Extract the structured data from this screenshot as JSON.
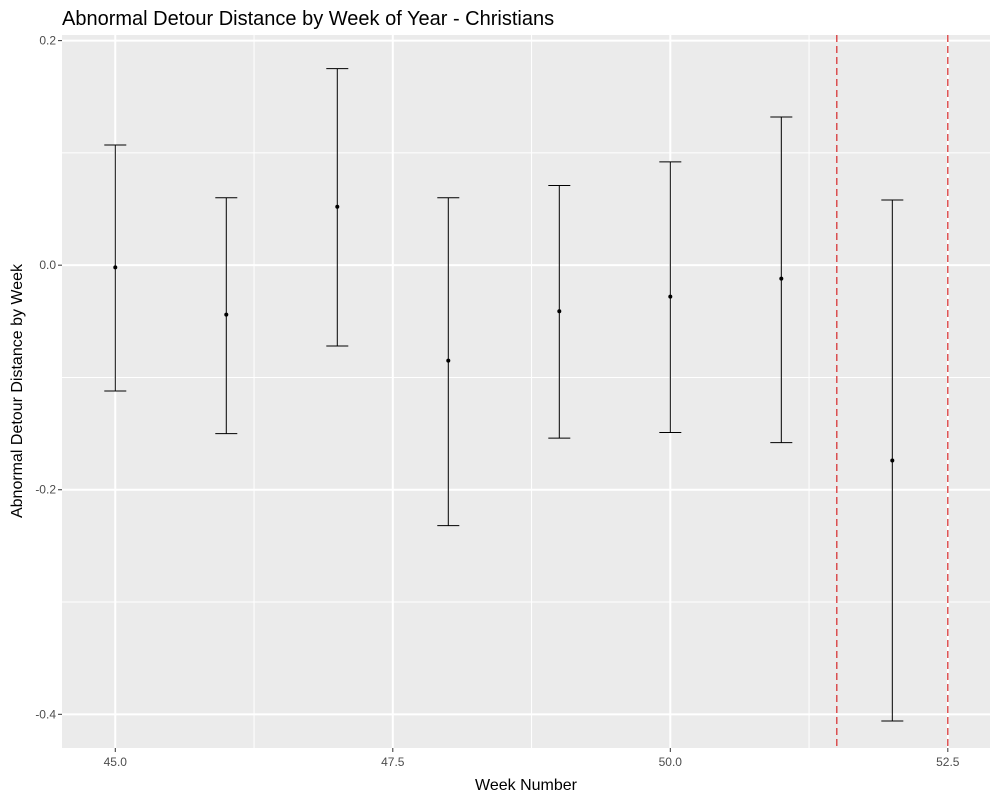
{
  "chart_data": {
    "type": "scatter",
    "title": "Abnormal Detour Distance by Week of Year - Christians",
    "xlabel": "Week Number",
    "ylabel": "Abnormal Detour Distance by Week",
    "xlim": [
      44.52,
      52.88
    ],
    "ylim": [
      -0.43,
      0.205
    ],
    "x_ticks": [
      45.0,
      47.5,
      50.0,
      52.5
    ],
    "x_tick_labels": [
      "45.0",
      "47.5",
      "50.0",
      "52.5"
    ],
    "y_ticks": [
      0.2,
      0.0,
      -0.2,
      -0.4
    ],
    "y_tick_labels": [
      "0.2",
      "0.0",
      "-0.2",
      "-0.4"
    ],
    "grid": true,
    "points": [
      {
        "x": 45,
        "y": -0.002,
        "ymin": -0.112,
        "ymax": 0.107
      },
      {
        "x": 46,
        "y": -0.044,
        "ymin": -0.15,
        "ymax": 0.06
      },
      {
        "x": 47,
        "y": 0.052,
        "ymin": -0.072,
        "ymax": 0.175
      },
      {
        "x": 48,
        "y": -0.085,
        "ymin": -0.232,
        "ymax": 0.06
      },
      {
        "x": 49,
        "y": -0.041,
        "ymin": -0.154,
        "ymax": 0.071
      },
      {
        "x": 50,
        "y": -0.028,
        "ymin": -0.149,
        "ymax": 0.092
      },
      {
        "x": 51,
        "y": -0.012,
        "ymin": -0.158,
        "ymax": 0.132
      },
      {
        "x": 52,
        "y": -0.174,
        "ymin": -0.406,
        "ymax": 0.058
      }
    ],
    "reference_lines": [
      {
        "x": 51.5,
        "color": "#d62728",
        "style": "dashed"
      },
      {
        "x": 52.5,
        "color": "#d62728",
        "style": "dashed"
      }
    ],
    "colors": {
      "panel_background": "#ebebeb",
      "grid": "#ffffff",
      "point": "#000000",
      "errorbar": "#000000"
    }
  }
}
